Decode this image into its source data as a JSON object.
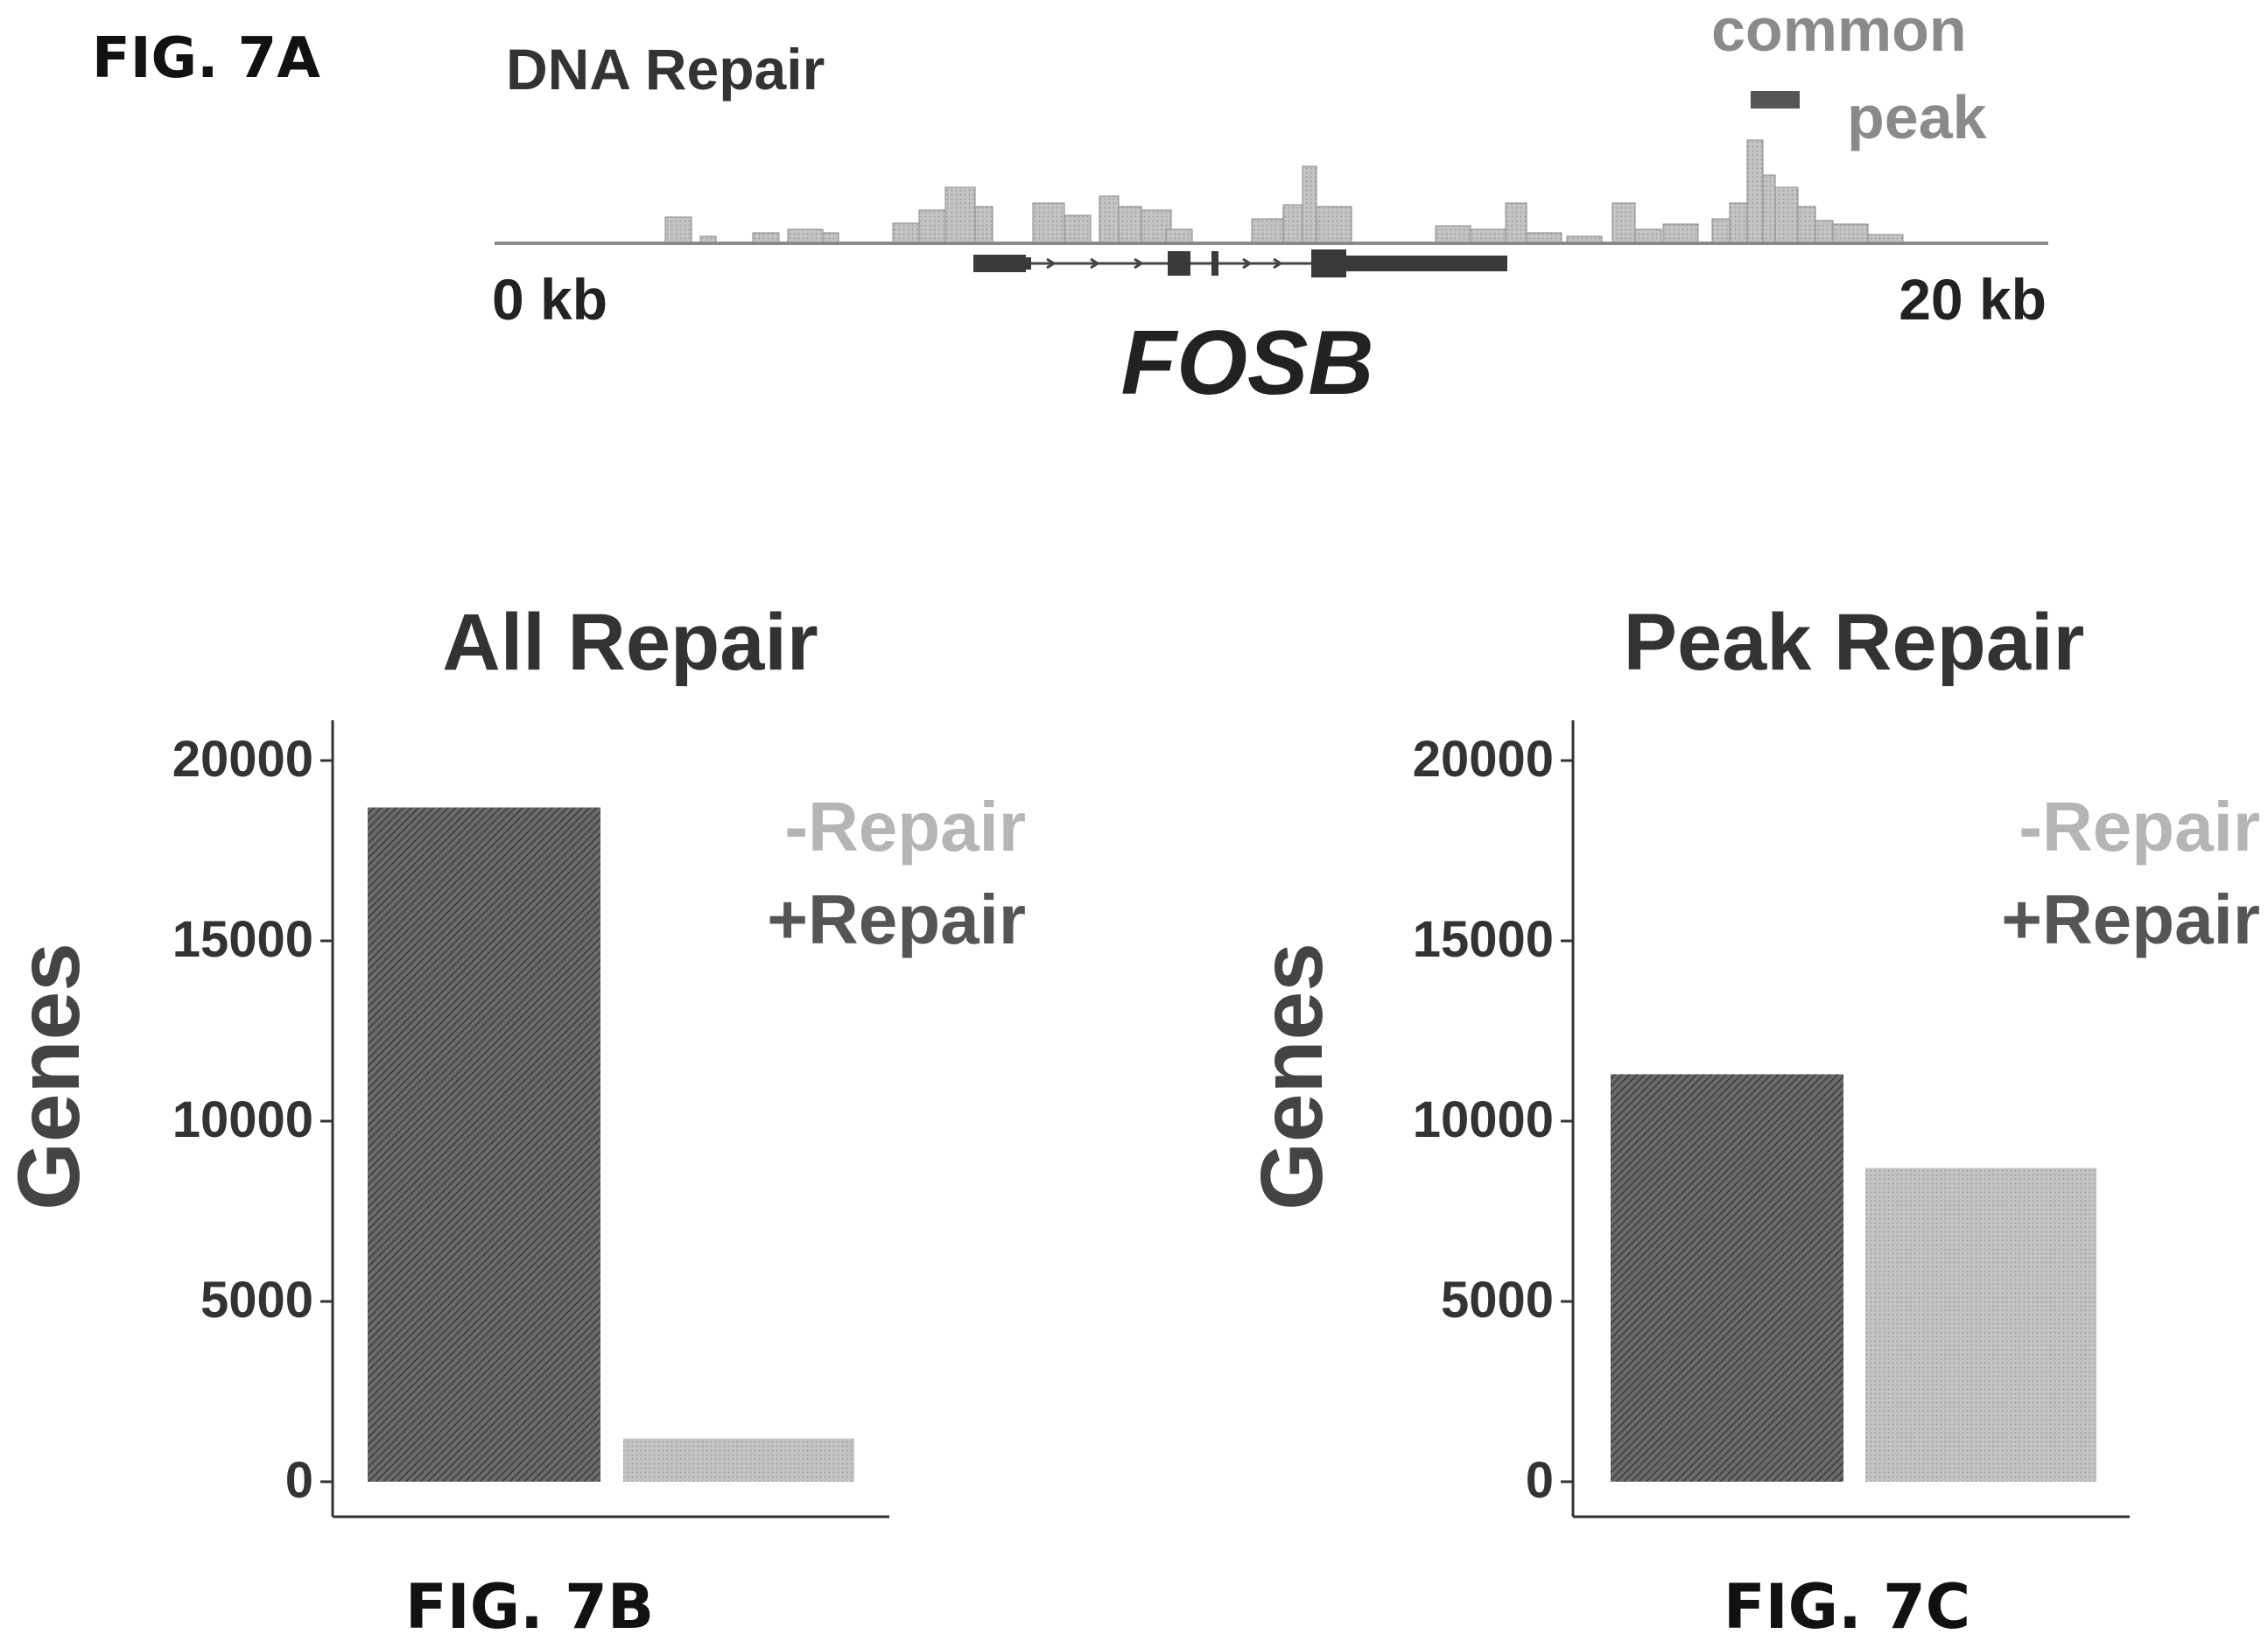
{
  "fig_a": {
    "label": "FIG. 7A",
    "title": "DNA Repair",
    "legend_line1": "common",
    "legend_line2": "peak",
    "axis_start": "0 kb",
    "axis_end": "20 kb",
    "gene": "FOSB",
    "track_color": "#7a7a7a",
    "peak_color": "#555555"
  },
  "fig_b": {
    "label": "FIG. 7B"
  },
  "fig_c": {
    "label": "FIG. 7C"
  },
  "colors": {
    "plus_repair": "#5a5a5a",
    "minus_repair": "#b8b8b8",
    "text": "#333333"
  },
  "chart_data": [
    {
      "type": "bar",
      "title": "All Repair",
      "ylabel": "Genes",
      "xlabel": "",
      "ylim": [
        0,
        21000
      ],
      "yticks": [
        "0",
        "5000",
        "10000",
        "15000",
        "20000"
      ],
      "categories": [
        "+Repair",
        "-Repair"
      ],
      "values": [
        18700,
        1200
      ],
      "legend": [
        "-Repair",
        "+Repair"
      ],
      "legend_position": "top-right",
      "grid": false
    },
    {
      "type": "bar",
      "title": "Peak Repair",
      "ylabel": "Genes",
      "xlabel": "",
      "ylim": [
        0,
        21000
      ],
      "yticks": [
        "0",
        "5000",
        "10000",
        "15000",
        "20000"
      ],
      "categories": [
        "+Repair",
        "-Repair"
      ],
      "values": [
        11300,
        8700
      ],
      "legend": [
        "-Repair",
        "+Repair"
      ],
      "legend_position": "top-right",
      "grid": false
    }
  ]
}
